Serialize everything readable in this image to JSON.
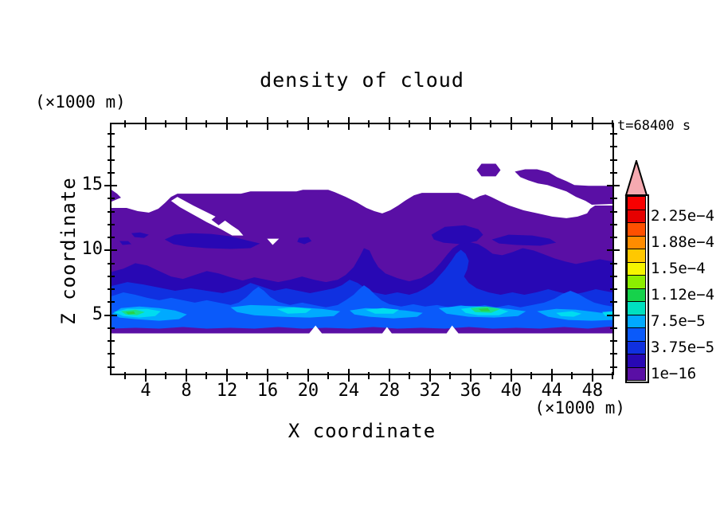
{
  "title": "density of cloud",
  "time_label": "t=68400 s",
  "axes": {
    "x": {
      "label": "X coordinate",
      "unit": "(×1000 m)",
      "range": [
        0.55,
        50.05
      ],
      "major_ticks": [
        4,
        8,
        12,
        16,
        20,
        24,
        28,
        32,
        36,
        40,
        44,
        48
      ],
      "minor_step": 2
    },
    "z": {
      "label": "Z coordinate",
      "unit": "(×1000 m)",
      "range": [
        0.4,
        19.8
      ],
      "major_ticks": [
        5,
        10,
        15
      ],
      "minor_step": 1
    }
  },
  "colorbar": {
    "labels": [
      "2.25e−4",
      "1.88e−4",
      "1.5e−4",
      "1.12e−4",
      "7.5e−5",
      "3.75e−5",
      "1e−16"
    ],
    "segments_top_to_bottom": [
      "#F80000",
      "#E60000",
      "#FF5000",
      "#FF8C00",
      "#FFC800",
      "#F5F500",
      "#8CEE00",
      "#16D24B",
      "#00E0C0",
      "#00AAFF",
      "#0A5AFA",
      "#1030E0",
      "#2808B4",
      "#5A0FA5"
    ],
    "overflow_color": "#F5A9B0"
  },
  "chart_data": {
    "type": "filled_contour",
    "title": "density of cloud",
    "time_seconds": 68400,
    "xlabel": "X coordinate (×1000 m)",
    "ylabel": "Z coordinate (×1000 m)",
    "x_range_km": [
      0.5,
      50
    ],
    "z_range_km": [
      0.4,
      19.8
    ],
    "contour_levels": [
      "1e-16",
      "1.875e-5",
      "3.75e-5",
      "5.625e-5",
      "7.5e-5",
      "9.375e-5",
      "1.12e-4",
      "1.3e-4",
      "1.5e-4",
      "1.69e-4",
      "1.88e-4",
      "2.06e-4",
      "2.25e-4",
      "2.44e-4"
    ],
    "level_colors_low_to_high": [
      "#5A0FA5",
      "#2808B4",
      "#1030E0",
      "#0A5AFA",
      "#00AAFF",
      "#00E0C0",
      "#16D24B",
      "#8CEE00",
      "#F5F500",
      "#FFC800",
      "#FF8C00",
      "#FF5000",
      "#E60000",
      "#F80000"
    ],
    "field_summary": {
      "cloud_base_km": 3.4,
      "cloud_top_km_typical": 13.5,
      "cloud_top_km_max": 15.5,
      "detached_cloud_patches_x_km": [
        37,
        41,
        44,
        48
      ],
      "peak_band_altitude_km": [
        4,
        5.5
      ],
      "peak_density_value": "≈1.1e-4",
      "peak_density_locations_x_km": [
        2.5,
        37.5
      ],
      "mid_cloud_density_range": "1.9e-5 – 5.6e-5 between z≈6 and z≈10 km",
      "upper_cloud_density": "< 1.875e-5 (lowest bin, violet) above z≈10 km",
      "clear_air": "white regions above cloud top and below cloud base"
    },
    "legend_position": "right colorbar with overflow arrow"
  }
}
